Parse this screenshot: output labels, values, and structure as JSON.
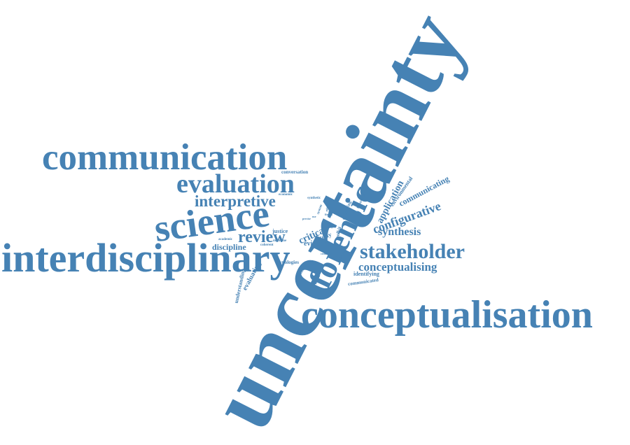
{
  "cloud": {
    "color": "#4682b4",
    "words": {
      "uncertainty": "uncertainty",
      "communication": "communication",
      "interdisciplinary": "interdisciplinary",
      "conceptualisation": "conceptualisation",
      "science": "science",
      "forensic": "forensic",
      "evaluation": "evaluation",
      "stakeholder": "stakeholder",
      "interpretive": "interpretive",
      "configurative": "configurative",
      "review": "review",
      "conceptualising": "conceptualising",
      "synthesis": "synthesis",
      "application": "application",
      "communicating": "communicating",
      "environmental": "environmental",
      "discipline": "discipline",
      "critical": "critical",
      "evidence": "evidence",
      "study": "study",
      "evaluating": "evaluating",
      "understanding": "understanding",
      "justice": "justice",
      "identifying": "identifying",
      "communicated": "communicated",
      "typologies": "typologies",
      "conversation": "conversation",
      "toolkit": "toolkit",
      "underlying": "underlying",
      "medicine": "medicine",
      "coherent": "coherent",
      "academic": "academic",
      "economic": "economic",
      "synthetic": "synthetic",
      "consistent": "consistent",
      "definitions": "definitions",
      "frustrating": "frustrating",
      "precise": "precise",
      "system": "system",
      "effective": "effective",
      "more": "more",
      "many": "many",
      "criminal": "criminal",
      "fitness": "fitness",
      "use": "use"
    }
  }
}
